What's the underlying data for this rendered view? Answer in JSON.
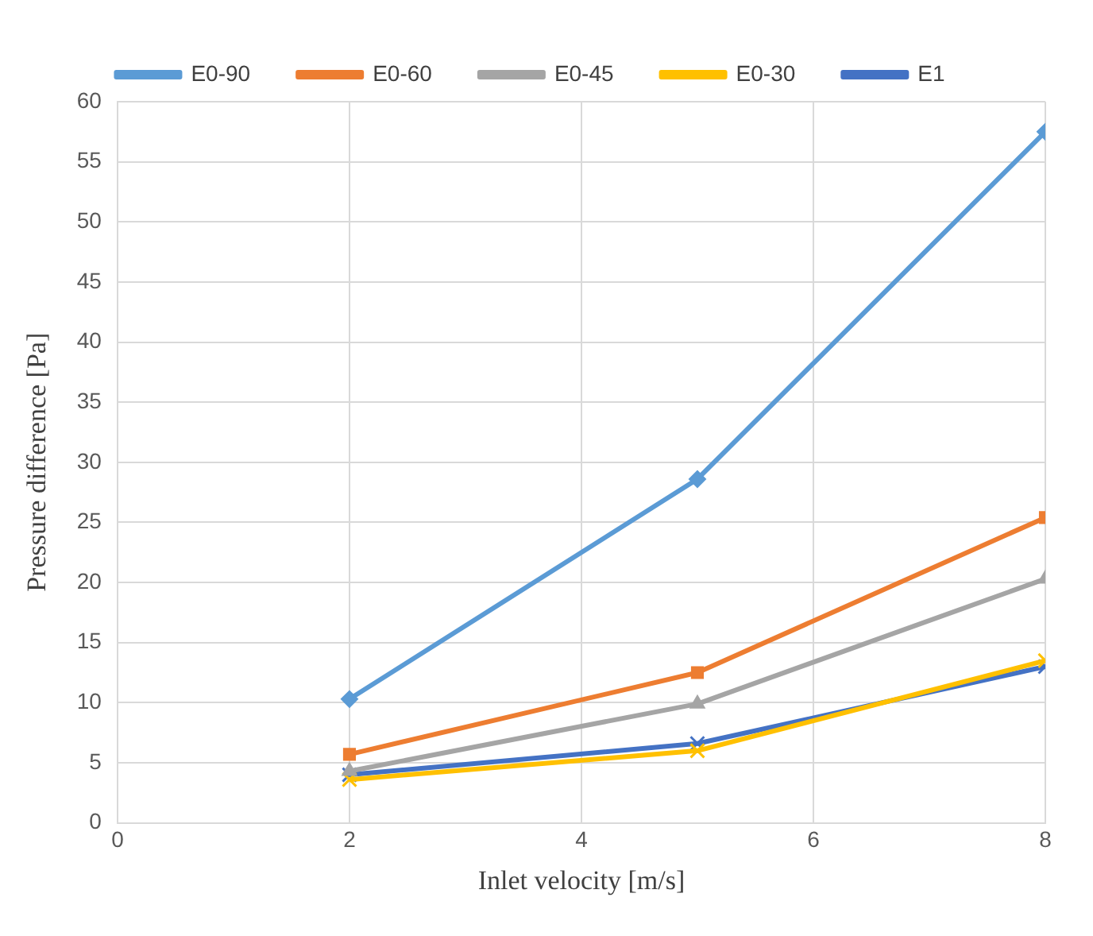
{
  "chart_data": {
    "type": "line",
    "xlabel": "Inlet velocity [m/s]",
    "ylabel": "Pressure difference [Pa]",
    "x": [
      2,
      5,
      8
    ],
    "series": [
      {
        "name": "E0-90",
        "color": "#5b9bd5",
        "values": [
          10.3,
          28.6,
          57.5
        ],
        "marker": "diamond"
      },
      {
        "name": "E0-60",
        "color": "#ed7d31",
        "values": [
          5.7,
          12.5,
          25.4
        ],
        "marker": "square"
      },
      {
        "name": "E0-45",
        "color": "#a5a5a5",
        "values": [
          4.3,
          9.9,
          20.3
        ],
        "marker": "triangle"
      },
      {
        "name": "E0-30",
        "color": "#ffc000",
        "values": [
          3.6,
          6.0,
          13.5
        ],
        "marker": "cross"
      },
      {
        "name": "E1",
        "color": "#4472c4",
        "values": [
          4.0,
          6.6,
          13.0
        ],
        "marker": "cross"
      }
    ],
    "xlim": [
      0,
      8
    ],
    "xticks": [
      0,
      2,
      4,
      6,
      8
    ],
    "ylim": [
      0,
      60
    ],
    "yticks": [
      0,
      5,
      10,
      15,
      20,
      25,
      30,
      35,
      40,
      45,
      50,
      55,
      60
    ],
    "grid": true,
    "legend": "top"
  }
}
